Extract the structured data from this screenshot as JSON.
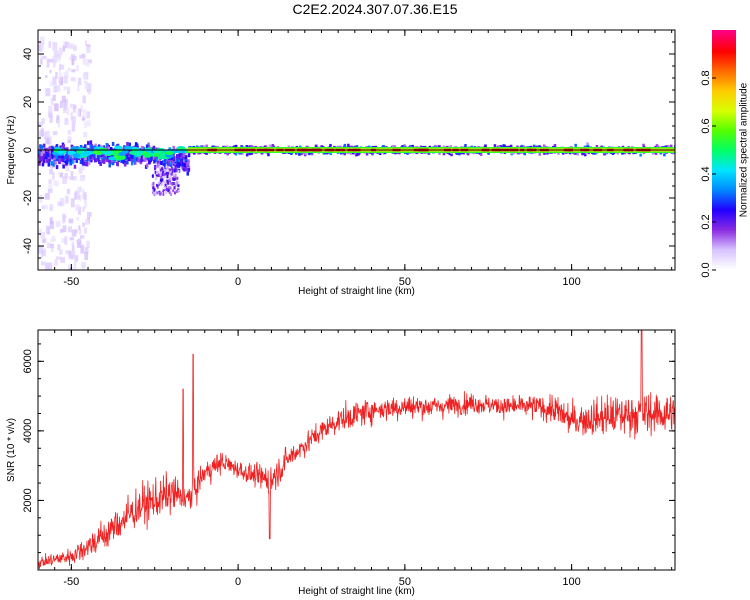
{
  "title": "C2E2.2024.307.07.36.E15",
  "chart_data": [
    {
      "type": "heatmap",
      "xlabel": "Height of straight line (km)",
      "ylabel": "Frequency (Hz)",
      "xlim": [
        -60,
        131
      ],
      "ylim": [
        -50,
        50
      ],
      "x_ticks": [
        -50,
        0,
        50,
        100
      ],
      "y_ticks": [
        -40,
        -20,
        0,
        20,
        40
      ],
      "colorbar": {
        "label": "Normalized spectral amplitude",
        "range": [
          0.0,
          1.0
        ],
        "ticks": [
          0.0,
          0.2,
          0.4,
          0.6,
          0.8
        ],
        "tick_labels": [
          "0.0",
          "0.2",
          "0.4",
          "0.6",
          "0.8"
        ],
        "colors": [
          "#ffffff",
          "#d7c2ff",
          "#8a2be2",
          "#2200ff",
          "#0088ff",
          "#00e5ff",
          "#00ff66",
          "#55ff00",
          "#d8ff00",
          "#ffcc00",
          "#ff6a00",
          "#ff0000",
          "#ff0080"
        ]
      },
      "center_line_frequency": 0,
      "features": [
        {
          "x_range": [
            -60,
            -45
          ],
          "freq_spread": [
            -50,
            48
          ],
          "amplitude": 0.05
        },
        {
          "x_range": [
            -60,
            -15
          ],
          "freq_center": -2,
          "freq_width": 6,
          "amplitude": 0.4
        },
        {
          "x_range": [
            -25,
            -18
          ],
          "freq_center": -8,
          "freq_width": 8,
          "amplitude": 0.15
        },
        {
          "x_range": [
            -15,
            131
          ],
          "freq_center": 0,
          "freq_width": 2,
          "amplitude": 0.9
        }
      ]
    },
    {
      "type": "line",
      "xlabel": "Height of straight line (km)",
      "ylabel": "SNR (10 * v/v)",
      "xlim": [
        -60,
        131
      ],
      "ylim": [
        0,
        6900
      ],
      "x_ticks": [
        -50,
        0,
        50,
        100
      ],
      "y_ticks": [
        2000,
        4000,
        6000
      ],
      "line_color": "#ee2222",
      "envelope": {
        "x": [
          -60,
          -50,
          -40,
          -30,
          -20,
          -15,
          -10,
          -5,
          0,
          5,
          10,
          15,
          20,
          25,
          30,
          40,
          50,
          60,
          70,
          80,
          90,
          95,
          100,
          110,
          120,
          131
        ],
        "y": [
          200,
          400,
          1000,
          1800,
          2200,
          2000,
          2800,
          3100,
          2900,
          2700,
          2600,
          3200,
          3600,
          4000,
          4300,
          4600,
          4700,
          4700,
          4800,
          4700,
          4700,
          4600,
          4300,
          4400,
          4500,
          4500
        ],
        "noise": [
          300,
          500,
          900,
          1100,
          1100,
          900,
          700,
          600,
          500,
          600,
          900,
          700,
          600,
          600,
          700,
          700,
          650,
          600,
          550,
          550,
          650,
          800,
          900,
          1100,
          1200,
          1100
        ]
      },
      "spikes": [
        {
          "x": -13.5,
          "y": 6200
        },
        {
          "x": -16.5,
          "y": 5200
        },
        {
          "x": 121,
          "y": 6900
        },
        {
          "x": 9.5,
          "y": 900
        }
      ]
    }
  ]
}
